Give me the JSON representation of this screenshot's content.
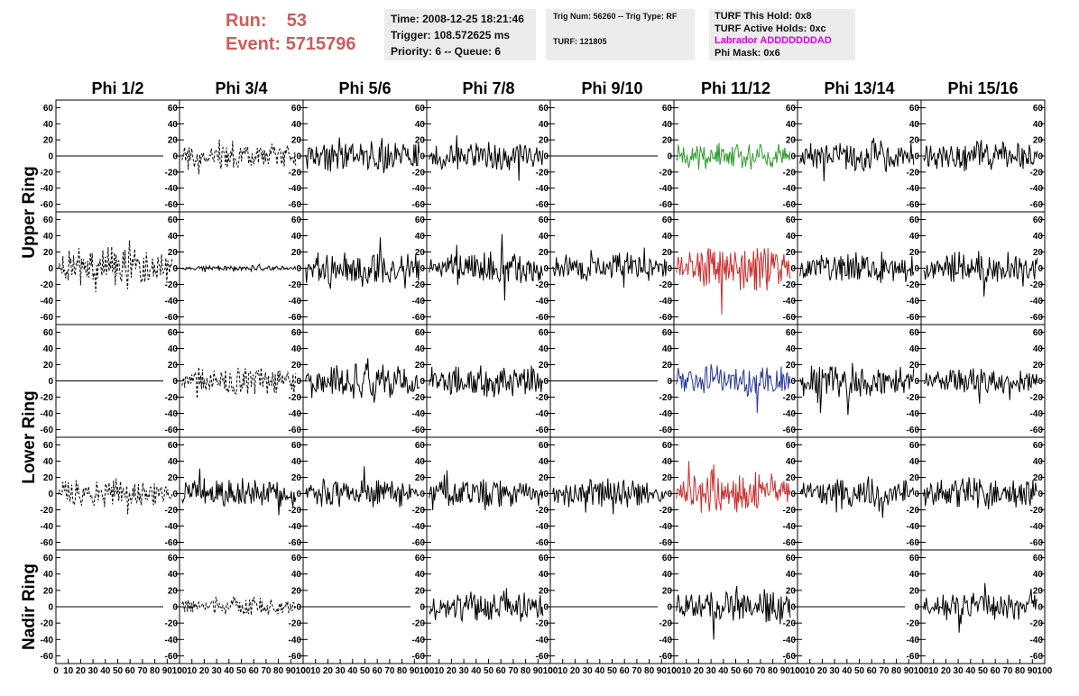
{
  "header": {
    "run_label": "Run:",
    "run_value": "53",
    "event_label": "Event:",
    "event_value": "5715796"
  },
  "info_time": {
    "time": "Time: 2008-12-25 18:21:46",
    "trigger": "Trigger: 108.572625 ms",
    "priority": "Priority: 6 -- Queue: 6"
  },
  "info_trig": {
    "trig": "Trig Num: 56260 -- Trig Type: RF",
    "turf": "TURF: 121805"
  },
  "info_turf": {
    "this_hold": "TURF This Hold: 0x8",
    "active_holds": "TURF Active Holds: 0xc",
    "labrador": "Labrador ADDDDDDDAD",
    "phi_mask": "Phi Mask: 0x6"
  },
  "colors": {
    "run_text": "#cc5c5c",
    "labrador_text": "#e000e0",
    "trace_default": "#000000",
    "trace_green": "#2e9a2e",
    "trace_red": "#cc2b2b",
    "trace_blue": "#2a3a9c"
  },
  "chart_data": {
    "type": "line",
    "column_titles": [
      "Phi 1/2",
      "Phi 3/4",
      "Phi 5/6",
      "Phi 7/8",
      "Phi 9/10",
      "Phi 11/12",
      "Phi 13/14",
      "Phi 15/16"
    ],
    "ring_labels": [
      "Upper Ring",
      "Lower Ring",
      "Nadir Ring"
    ],
    "ring_row_spans": [
      [
        0,
        1
      ],
      [
        2,
        3
      ],
      [
        4,
        4
      ]
    ],
    "ylim": [
      -65,
      65
    ],
    "xlim": [
      0,
      100
    ],
    "y_ticks": [
      60,
      40,
      20,
      0,
      -20,
      -40,
      -60
    ],
    "x_ticks": [
      0,
      10,
      20,
      30,
      40,
      50,
      60,
      70,
      80,
      90,
      100
    ],
    "x_tick_labels": [
      "0",
      "10",
      "20",
      "30",
      "40",
      "50",
      "60",
      "70",
      "80",
      "90",
      "100"
    ],
    "panels": [
      [
        {
          "style": "flat"
        },
        {
          "style": "dashed",
          "amp": 14
        },
        {
          "style": "solid",
          "amp": 18
        },
        {
          "style": "solid",
          "amp": 16
        },
        {
          "style": "flat"
        },
        {
          "style": "solid",
          "amp": 14,
          "color": "green"
        },
        {
          "style": "solid",
          "amp": 17
        },
        {
          "style": "solid",
          "amp": 16
        }
      ],
      [
        {
          "style": "dashed",
          "amp": 20
        },
        {
          "style": "solid",
          "amp": 3
        },
        {
          "style": "solid",
          "amp": 18
        },
        {
          "style": "solid",
          "amp": 17
        },
        {
          "style": "solid",
          "amp": 16
        },
        {
          "style": "solid",
          "amp": 24,
          "color": "red"
        },
        {
          "style": "solid",
          "amp": 16
        },
        {
          "style": "solid",
          "amp": 17
        }
      ],
      [
        {
          "style": "flat"
        },
        {
          "style": "dashed",
          "amp": 14
        },
        {
          "style": "solid",
          "amp": 18
        },
        {
          "style": "solid",
          "amp": 17
        },
        {
          "style": "flat"
        },
        {
          "style": "solid",
          "amp": 17,
          "color": "blue"
        },
        {
          "style": "solid",
          "amp": 18
        },
        {
          "style": "solid",
          "amp": 13
        }
      ],
      [
        {
          "style": "dashed",
          "amp": 14
        },
        {
          "style": "solid",
          "amp": 16
        },
        {
          "style": "solid",
          "amp": 16
        },
        {
          "style": "solid",
          "amp": 15
        },
        {
          "style": "solid",
          "amp": 15
        },
        {
          "style": "solid",
          "amp": 22,
          "color": "red"
        },
        {
          "style": "solid",
          "amp": 16
        },
        {
          "style": "solid",
          "amp": 17
        }
      ],
      [
        {
          "style": "flat"
        },
        {
          "style": "dashed",
          "amp": 10
        },
        {
          "style": "flat"
        },
        {
          "style": "solid",
          "amp": 15
        },
        {
          "style": "flat"
        },
        {
          "style": "solid",
          "amp": 17
        },
        {
          "style": "flat"
        },
        {
          "style": "solid",
          "amp": 15
        }
      ]
    ]
  }
}
